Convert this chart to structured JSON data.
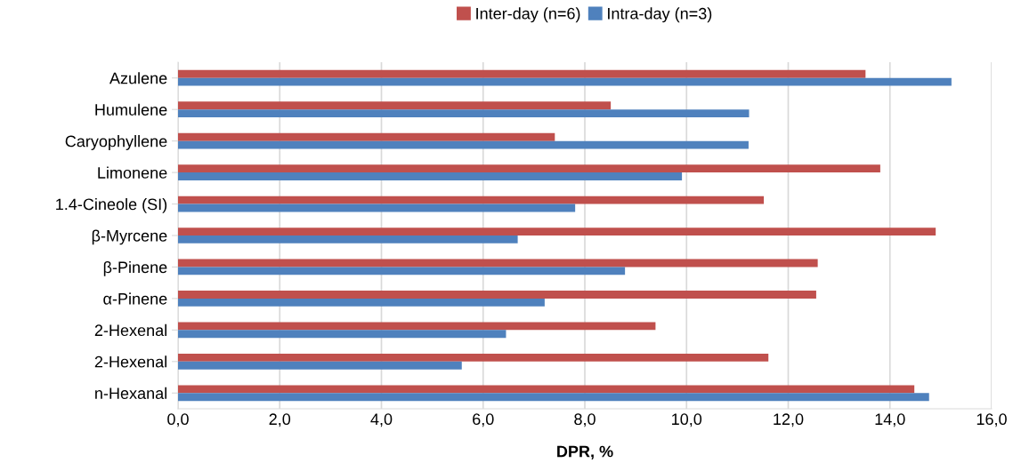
{
  "chart_data": {
    "type": "bar",
    "orientation": "horizontal",
    "xlabel": "DPR, %",
    "categories": [
      "Azulene",
      "Humulene",
      "Caryophyllene",
      "Limonene",
      "1.4-Cineole (SI)",
      "β-Myrcene",
      "β-Pinene",
      "α-Pinene",
      "2-Hexenal",
      "2-Hexenal",
      "n-Hexanal"
    ],
    "series": [
      {
        "name": "Inter-day (n=6)",
        "color": "#c0504d",
        "values": [
          13.52,
          8.51,
          7.41,
          13.81,
          11.52,
          14.9,
          12.58,
          12.55,
          9.39,
          11.61,
          14.48
        ]
      },
      {
        "name": "Intra-day (n=3)",
        "color": "#4f81bd",
        "values": [
          15.21,
          11.23,
          11.22,
          9.91,
          7.81,
          6.68,
          8.79,
          7.21,
          6.45,
          5.58,
          14.77
        ]
      }
    ],
    "xlim": [
      0,
      16
    ],
    "xticks": [
      {
        "value": 0,
        "label": "0,0"
      },
      {
        "value": 2,
        "label": "2,0"
      },
      {
        "value": 4,
        "label": "4,0"
      },
      {
        "value": 6,
        "label": "6,0"
      },
      {
        "value": 8,
        "label": "8,0"
      },
      {
        "value": 10,
        "label": "10,0"
      },
      {
        "value": 12,
        "label": "12,0"
      },
      {
        "value": 14,
        "label": "14,0"
      },
      {
        "value": 16,
        "label": "16,0"
      }
    ],
    "grid": "x",
    "legend": "top"
  }
}
